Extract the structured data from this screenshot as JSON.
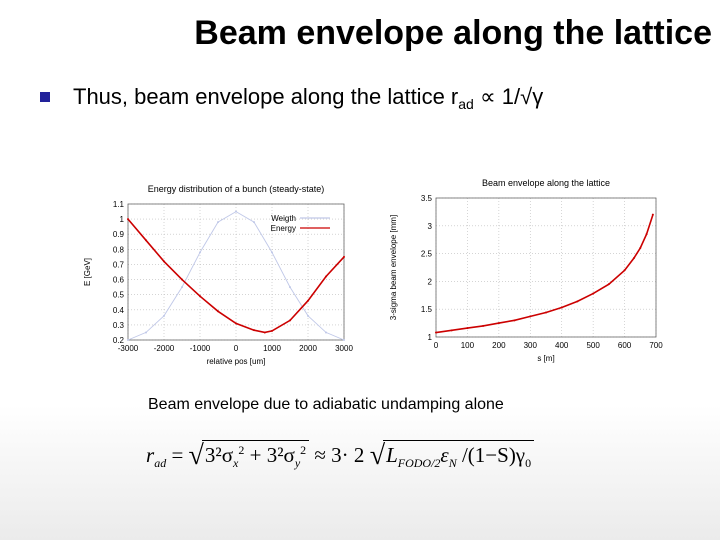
{
  "slide": {
    "title": "Beam envelope along the lattice",
    "bullet": {
      "text": "Thus, beam envelope along the lattice r",
      "sub": "ad",
      "rest": " ∝ 1/√γ"
    },
    "caption": "Beam envelope due to adiabatic undamping alone",
    "formula": {
      "lhs": "r",
      "lhs_sub": "ad",
      "eq": " = ",
      "term1": "3²σ",
      "term1_sub": "x",
      "term1_sup": "2",
      "plus": " + ",
      "term2": "3²σ",
      "term2_sub": "y",
      "term2_sup": "2",
      "approx": " ≈ 3· 2 ",
      "L": "L",
      "L_sub": "FODO/2",
      "eps": "ε",
      "eps_sub": "N",
      "tail": " /(1−S)γ",
      "tail_sub": "0"
    }
  },
  "chart_data": [
    {
      "type": "line",
      "title": "Energy distribution of a bunch (steady-state)",
      "xlabel": "relative pos [um]",
      "ylabel": "E [GeV]",
      "xlim": [
        -3000,
        3000
      ],
      "ylim": [
        0.2,
        1.1
      ],
      "xticks": [
        -3000,
        -2000,
        -1000,
        0,
        1000,
        2000,
        3000
      ],
      "yticks": [
        0.2,
        0.3,
        0.4,
        0.5,
        0.6,
        0.7,
        0.8,
        0.9,
        1,
        1.1
      ],
      "grid": true,
      "legend_position": "top-right",
      "series": [
        {
          "name": "Weigth",
          "color": "#c0c8e8",
          "x": [
            -3000,
            -2500,
            -2000,
            -1500,
            -1000,
            -500,
            0,
            500,
            1000,
            1500,
            2000,
            2500,
            3000
          ],
          "y": [
            0.2,
            0.25,
            0.36,
            0.55,
            0.78,
            0.98,
            1.05,
            0.98,
            0.78,
            0.55,
            0.36,
            0.25,
            0.2
          ]
        },
        {
          "name": "Energy",
          "color": "#cc0000",
          "x": [
            -3000,
            -2500,
            -2000,
            -1500,
            -1000,
            -500,
            0,
            500,
            800,
            1000,
            1500,
            2000,
            2500,
            3000
          ],
          "y": [
            1.0,
            0.86,
            0.72,
            0.6,
            0.49,
            0.39,
            0.31,
            0.265,
            0.25,
            0.26,
            0.33,
            0.46,
            0.62,
            0.75
          ]
        }
      ]
    },
    {
      "type": "line",
      "title": "Beam envelope along the lattice",
      "xlabel": "s [m]",
      "ylabel": "3-sigma beam envelope [mm]",
      "xlim": [
        0,
        700
      ],
      "ylim": [
        1,
        3.5
      ],
      "xticks": [
        0,
        100,
        200,
        300,
        400,
        500,
        600,
        700
      ],
      "yticks": [
        1,
        1.5,
        2,
        2.5,
        3,
        3.5
      ],
      "grid": true,
      "series": [
        {
          "color": "#cc0000",
          "x": [
            0,
            50,
            100,
            150,
            200,
            250,
            300,
            350,
            400,
            450,
            500,
            550,
            600,
            630,
            650,
            670,
            690
          ],
          "y": [
            1.08,
            1.12,
            1.16,
            1.2,
            1.25,
            1.3,
            1.37,
            1.44,
            1.53,
            1.64,
            1.78,
            1.95,
            2.2,
            2.42,
            2.6,
            2.85,
            3.2
          ]
        }
      ]
    }
  ]
}
